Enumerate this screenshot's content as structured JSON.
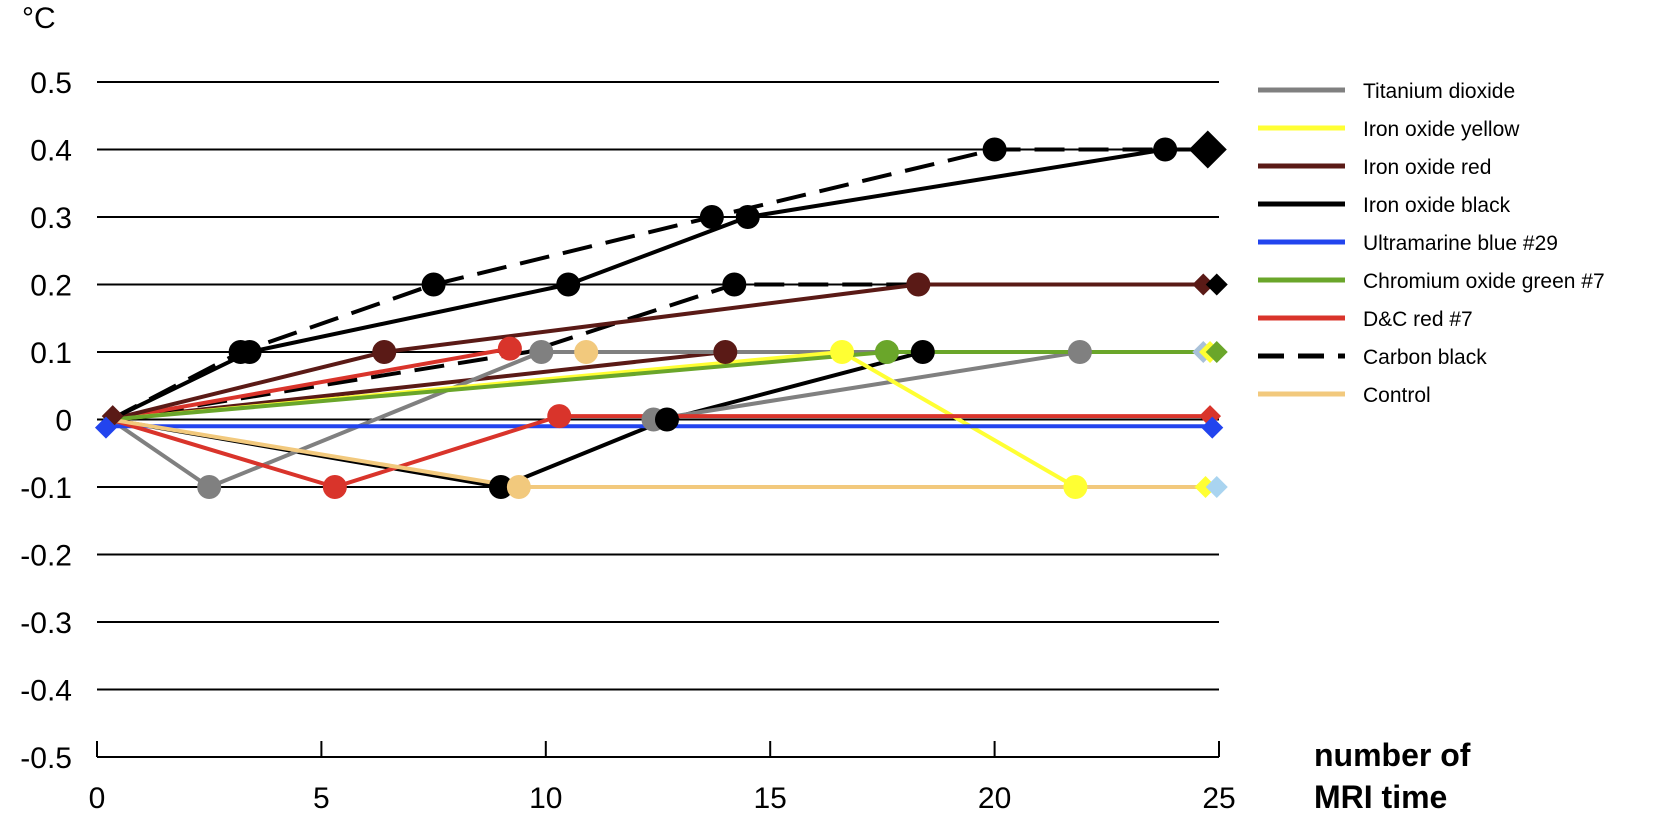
{
  "chart_data": {
    "type": "line",
    "ylabel": "°C",
    "xlabel_lines": [
      "number of",
      "MRI time"
    ],
    "xlim": [
      0,
      25
    ],
    "ylim": [
      -0.5,
      0.5
    ],
    "x_ticks": [
      "0",
      "5",
      "10",
      "15",
      "20",
      "25"
    ],
    "y_ticks": [
      "0.5",
      "0.4",
      "0.3",
      "0.2",
      "0.1",
      "0",
      "-0.1",
      "-0.2",
      "-0.3",
      "-0.4",
      "-0.5"
    ],
    "grid": "horizontal",
    "legend_position": "right",
    "series": [
      {
        "name": "Titanium dioxide",
        "color": "#808080",
        "dash": false,
        "points": [
          [
            0.3,
            0
          ],
          [
            2.5,
            -0.1
          ],
          [
            9.9,
            0.1
          ],
          [
            21.9,
            0.1
          ],
          [
            24.9,
            0.1
          ]
        ]
      },
      {
        "name": "Iron oxide yellow",
        "color": "#ffff33",
        "dash": false,
        "points": [
          [
            0.3,
            0
          ],
          [
            16.6,
            0.1
          ],
          [
            21.8,
            -0.1
          ],
          [
            24.9,
            -0.1
          ]
        ]
      },
      {
        "name": "Iron oxide red",
        "color": "#5a1a16",
        "dash": false,
        "points": [
          [
            0.3,
            0
          ],
          [
            6.4,
            0.1
          ],
          [
            18.3,
            0.2
          ],
          [
            24.9,
            0.2
          ]
        ]
      },
      {
        "name": "Iron oxide black",
        "color": "#000000",
        "dash": false,
        "points": [
          [
            0.3,
            0
          ],
          [
            3.4,
            0.1
          ],
          [
            10.5,
            0.2
          ],
          [
            14.5,
            0.3
          ],
          [
            23.8,
            0.4
          ],
          [
            24.9,
            0.4
          ]
        ]
      },
      {
        "name": "Ultramarine blue #29",
        "color": "#2244ee",
        "dash": false,
        "points": [
          [
            0.3,
            -0.01
          ],
          [
            24.9,
            -0.01
          ]
        ]
      },
      {
        "name": "Chromium oxide green #7",
        "color": "#6aa62a",
        "dash": false,
        "points": [
          [
            0.3,
            0
          ],
          [
            17.6,
            0.1
          ],
          [
            24.9,
            0.1
          ]
        ]
      },
      {
        "name": "D&C red #7",
        "color": "#d9342b",
        "dash": false,
        "points": [
          [
            0.3,
            0
          ],
          [
            5.3,
            -0.1
          ],
          [
            10.3,
            0.005
          ],
          [
            24.9,
            0.005
          ]
        ]
      },
      {
        "name": "Carbon black",
        "color": "#000000",
        "dash": true,
        "points": [
          [
            0.3,
            0
          ],
          [
            3.2,
            0.1
          ],
          [
            7.5,
            0.2
          ],
          [
            13.7,
            0.3
          ],
          [
            20.0,
            0.4
          ],
          [
            24.9,
            0.4
          ]
        ]
      },
      {
        "name": "Control",
        "color": "#f2c97d",
        "dash": false,
        "points": [
          [
            0.3,
            0
          ],
          [
            9.4,
            -0.1
          ],
          [
            24.9,
            -0.1
          ]
        ]
      }
    ],
    "extra_lines": [
      {
        "series": "Iron oxide red",
        "color": "#5a1a16",
        "dash": false,
        "points": [
          [
            0.3,
            0
          ],
          [
            14.0,
            0.1
          ],
          [
            24.9,
            0.1
          ]
        ]
      },
      {
        "series": "Iron oxide black",
        "color": "#000000",
        "dash": false,
        "points": [
          [
            0.3,
            0
          ],
          [
            9.0,
            -0.1
          ],
          [
            12.7,
            0
          ],
          [
            18.4,
            0.1
          ]
        ]
      },
      {
        "series": "Carbon black",
        "color": "#000000",
        "dash": true,
        "points": [
          [
            0.3,
            0
          ],
          [
            9.6,
            0.1
          ],
          [
            14.2,
            0.2
          ],
          [
            24.9,
            0.2
          ]
        ]
      },
      {
        "series": "D&C red #7",
        "color": "#d9342b",
        "dash": false,
        "points": [
          [
            0.3,
            0
          ],
          [
            9.2,
            0.105
          ]
        ]
      },
      {
        "series": "Titanium dioxide",
        "color": "#808080",
        "dash": false,
        "points": [
          [
            12.4,
            0
          ],
          [
            21.9,
            0.1
          ]
        ]
      }
    ],
    "markers": [
      {
        "series": "Titanium dioxide",
        "color": "#808080",
        "x": 2.5,
        "y": -0.1
      },
      {
        "series": "Titanium dioxide",
        "color": "#808080",
        "x": 9.9,
        "y": 0.1
      },
      {
        "series": "Titanium dioxide",
        "color": "#808080",
        "x": 12.4,
        "y": 0
      },
      {
        "series": "Titanium dioxide",
        "color": "#808080",
        "x": 21.9,
        "y": 0.1
      },
      {
        "series": "Iron oxide yellow",
        "color": "#ffff33",
        "x": 16.6,
        "y": 0.1
      },
      {
        "series": "Iron oxide yellow",
        "color": "#ffff33",
        "x": 21.8,
        "y": -0.1
      },
      {
        "series": "Iron oxide red",
        "color": "#5a1a16",
        "x": 6.4,
        "y": 0.1
      },
      {
        "series": "Iron oxide red",
        "color": "#5a1a16",
        "x": 14.0,
        "y": 0.1
      },
      {
        "series": "Iron oxide red",
        "color": "#5a1a16",
        "x": 18.3,
        "y": 0.2
      },
      {
        "series": "Iron oxide black",
        "color": "#000000",
        "x": 3.4,
        "y": 0.1
      },
      {
        "series": "Iron oxide black",
        "color": "#000000",
        "x": 9.0,
        "y": -0.1
      },
      {
        "series": "Iron oxide black",
        "color": "#000000",
        "x": 10.5,
        "y": 0.2
      },
      {
        "series": "Iron oxide black",
        "color": "#000000",
        "x": 12.7,
        "y": 0
      },
      {
        "series": "Iron oxide black",
        "color": "#000000",
        "x": 14.5,
        "y": 0.3
      },
      {
        "series": "Iron oxide black",
        "color": "#000000",
        "x": 18.4,
        "y": 0.1
      },
      {
        "series": "Iron oxide black",
        "color": "#000000",
        "x": 23.8,
        "y": 0.4
      },
      {
        "series": "Chromium oxide green #7",
        "color": "#6aa62a",
        "x": 17.6,
        "y": 0.1
      },
      {
        "series": "D&C red #7",
        "color": "#d9342b",
        "x": 5.3,
        "y": -0.1
      },
      {
        "series": "D&C red #7",
        "color": "#d9342b",
        "x": 9.2,
        "y": 0.105
      },
      {
        "series": "D&C red #7",
        "color": "#d9342b",
        "x": 10.3,
        "y": 0.005
      },
      {
        "series": "Carbon black",
        "color": "#000000",
        "x": 3.2,
        "y": 0.1
      },
      {
        "series": "Carbon black",
        "color": "#000000",
        "x": 7.5,
        "y": 0.2
      },
      {
        "series": "Carbon black",
        "color": "#000000",
        "x": 13.7,
        "y": 0.3
      },
      {
        "series": "Carbon black",
        "color": "#000000",
        "x": 14.2,
        "y": 0.2
      },
      {
        "series": "Carbon black",
        "color": "#000000",
        "x": 20.0,
        "y": 0.4
      },
      {
        "series": "Control",
        "color": "#f2c97d",
        "x": 9.4,
        "y": -0.1
      },
      {
        "series": "Control",
        "color": "#f2c97d",
        "x": 10.9,
        "y": 0.1
      }
    ],
    "end_diamonds": [
      {
        "series": "Iron oxide red",
        "color": "#5a1a16",
        "x": 0.35,
        "y": 0.005
      },
      {
        "series": "Ultramarine blue #29",
        "color": "#2244ee",
        "x": 0.2,
        "y": -0.012
      },
      {
        "series": "Iron oxide black",
        "color": "#000000",
        "x": 24.75,
        "y": 0.4,
        "large": true
      },
      {
        "series": "Iron oxide red",
        "color": "#5a1a16",
        "x": 24.65,
        "y": 0.2
      },
      {
        "series": "Carbon black",
        "color": "#000000",
        "x": 24.95,
        "y": 0.2
      },
      {
        "series": "Titanium dioxide",
        "color": "#a9c1d9",
        "x": 24.65,
        "y": 0.1
      },
      {
        "series": "Iron oxide yellow",
        "color": "#ffff33",
        "x": 24.8,
        "y": 0.1
      },
      {
        "series": "Chromium oxide green #7",
        "color": "#6aa62a",
        "x": 24.95,
        "y": 0.1
      },
      {
        "series": "D&C red #7",
        "color": "#d9342b",
        "x": 24.8,
        "y": 0.005
      },
      {
        "series": "Ultramarine blue #29",
        "color": "#2244ee",
        "x": 24.85,
        "y": -0.012
      },
      {
        "series": "Iron oxide yellow",
        "color": "#ffff33",
        "x": 24.7,
        "y": -0.1
      },
      {
        "series": "Titanium dioxide",
        "color": "#a9d4f0",
        "x": 24.95,
        "y": -0.1
      }
    ]
  }
}
